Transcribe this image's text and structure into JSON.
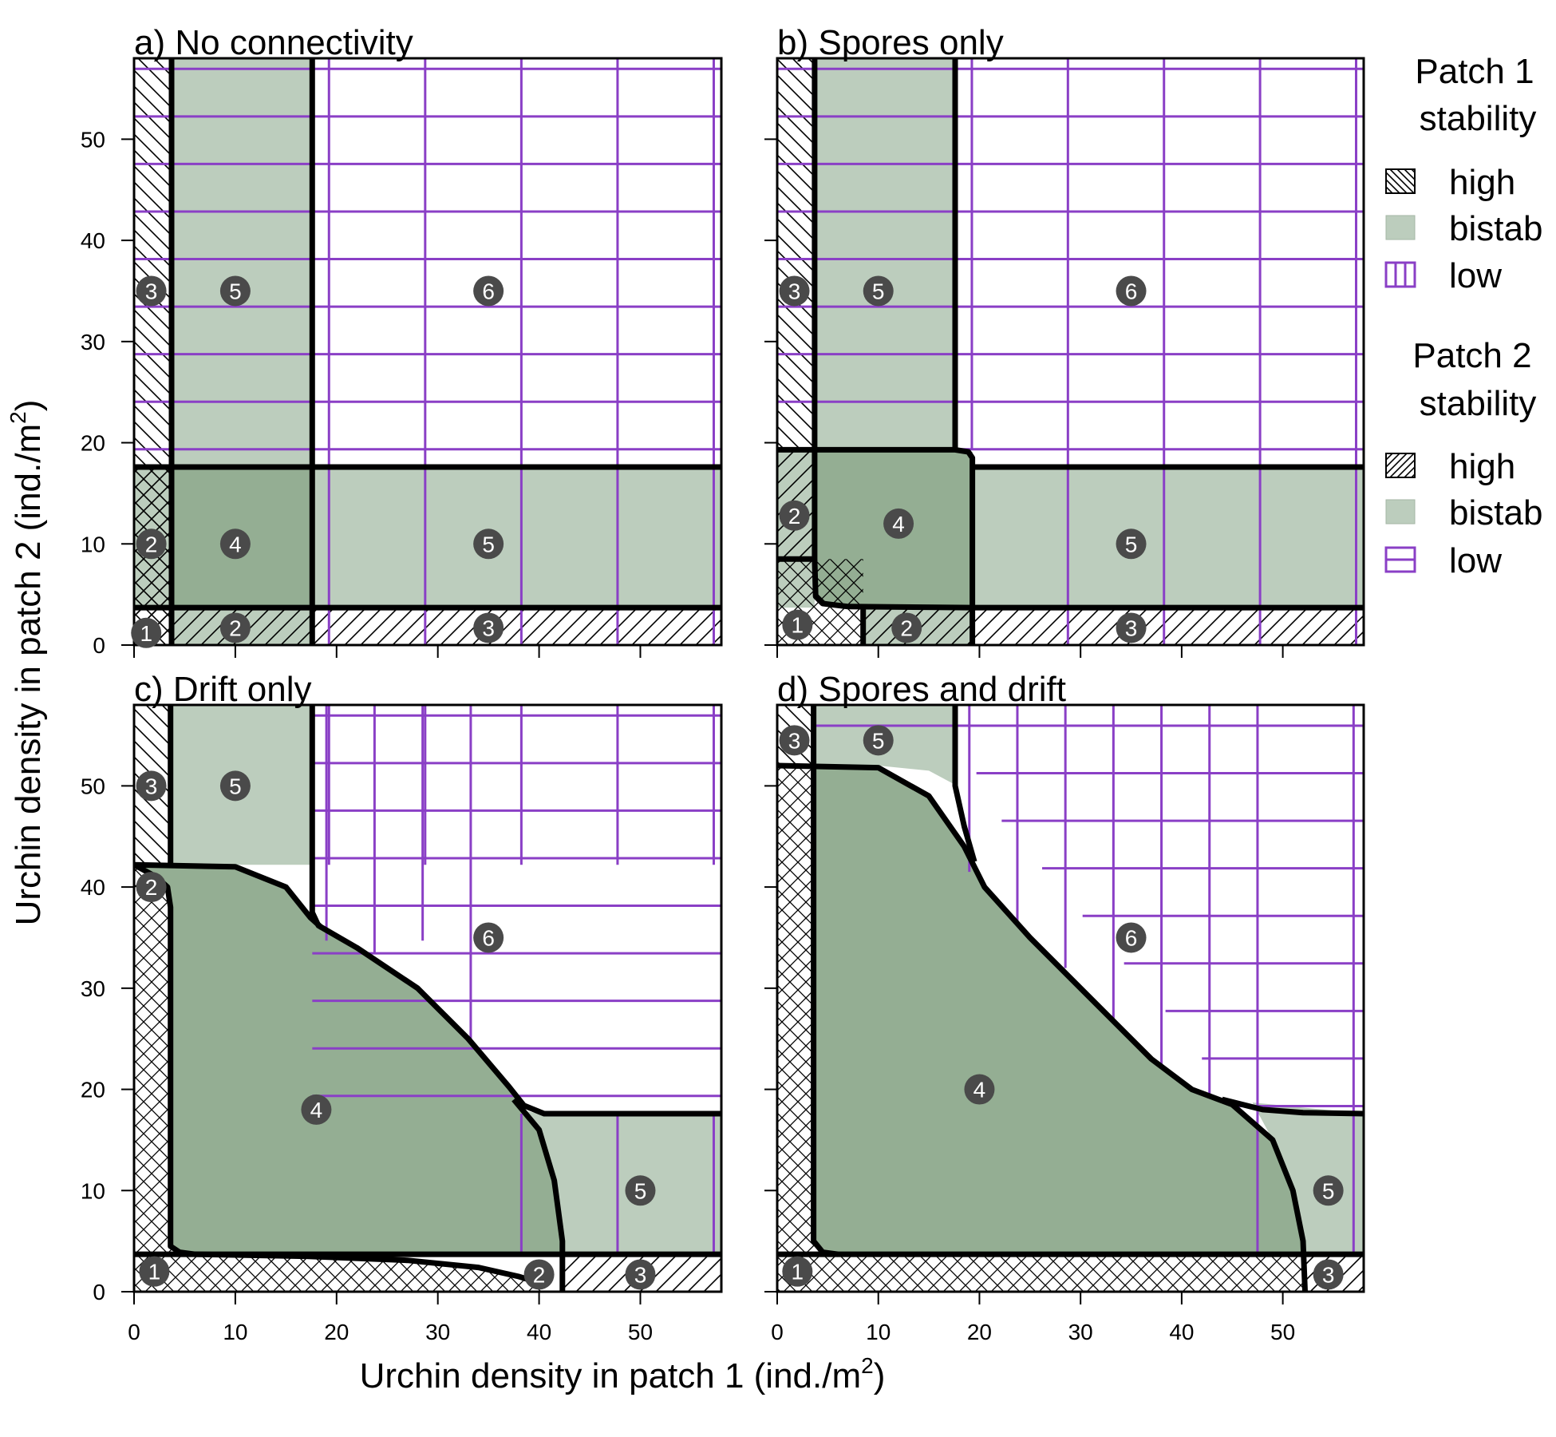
{
  "figure": {
    "xlabel": "Urchin density in patch 1 (ind./m",
    "ylabel": "Urchin density in patch 2 (ind./m",
    "unit_superscript": "2",
    "xticks": [
      0,
      10,
      20,
      30,
      40,
      50
    ],
    "yticks": [
      0,
      10,
      20,
      30,
      40,
      50
    ]
  },
  "legend": {
    "patch1": {
      "title_line1": "Patch 1",
      "title_line2": "stability",
      "items": [
        {
          "label": "high",
          "pattern": "diagonal-backslash"
        },
        {
          "label": "bistab",
          "pattern": "solid-green"
        },
        {
          "label": "low",
          "pattern": "vertical-lines-purple"
        }
      ]
    },
    "patch2": {
      "title_line1": "Patch 2",
      "title_line2": "stability",
      "items": [
        {
          "label": "high",
          "pattern": "diagonal-slash"
        },
        {
          "label": "bistab",
          "pattern": "solid-green"
        },
        {
          "label": "low",
          "pattern": "horizontal-lines-purple"
        }
      ]
    }
  },
  "colors": {
    "bistable_single": "#bccdbd",
    "bistable_both": "#94ae93",
    "low_lines": "#8a3fc6",
    "boundary": "#000000",
    "marker": "#4a4a4a"
  },
  "chart_data": [
    {
      "type": "region-map",
      "title": "a) No connectivity",
      "xlim": [
        0,
        58
      ],
      "ylim": [
        0,
        58
      ],
      "patch1_thresholds": [
        3.7,
        17.6
      ],
      "patch2_thresholds": [
        3.7,
        17.6
      ],
      "region_labels": [
        {
          "id": "1",
          "x": 1.2,
          "y": 1.2
        },
        {
          "id": "2",
          "x": 10,
          "y": 1.7
        },
        {
          "id": "3",
          "x": 35,
          "y": 1.7
        },
        {
          "id": "2",
          "x": 1.7,
          "y": 10
        },
        {
          "id": "4",
          "x": 10,
          "y": 10
        },
        {
          "id": "5",
          "x": 35,
          "y": 10
        },
        {
          "id": "3",
          "x": 1.7,
          "y": 35
        },
        {
          "id": "5",
          "x": 10,
          "y": 35
        },
        {
          "id": "6",
          "x": 35,
          "y": 35
        }
      ]
    },
    {
      "type": "region-map",
      "title": "b) Spores only",
      "xlim": [
        0,
        58
      ],
      "ylim": [
        0,
        58
      ],
      "region_labels": [
        {
          "id": "1",
          "x": 2,
          "y": 2
        },
        {
          "id": "2",
          "x": 12.8,
          "y": 1.7
        },
        {
          "id": "3",
          "x": 35,
          "y": 1.7
        },
        {
          "id": "2",
          "x": 1.7,
          "y": 12.8
        },
        {
          "id": "4",
          "x": 12,
          "y": 12
        },
        {
          "id": "5",
          "x": 35,
          "y": 10
        },
        {
          "id": "3",
          "x": 1.7,
          "y": 35
        },
        {
          "id": "5",
          "x": 10,
          "y": 35
        },
        {
          "id": "6",
          "x": 35,
          "y": 35
        }
      ]
    },
    {
      "type": "region-map",
      "title": "c) Drift only",
      "xlim": [
        0,
        58
      ],
      "ylim": [
        0,
        58
      ],
      "region_labels": [
        {
          "id": "1",
          "x": 2,
          "y": 2
        },
        {
          "id": "2",
          "x": 40,
          "y": 1.7
        },
        {
          "id": "3",
          "x": 50,
          "y": 1.7
        },
        {
          "id": "2",
          "x": 1.7,
          "y": 40
        },
        {
          "id": "4",
          "x": 18,
          "y": 18
        },
        {
          "id": "5",
          "x": 50,
          "y": 10
        },
        {
          "id": "3",
          "x": 1.7,
          "y": 50
        },
        {
          "id": "5",
          "x": 10,
          "y": 50
        },
        {
          "id": "6",
          "x": 35,
          "y": 35
        }
      ]
    },
    {
      "type": "region-map",
      "title": "d) Spores and drift",
      "xlim": [
        0,
        58
      ],
      "ylim": [
        0,
        58
      ],
      "region_labels": [
        {
          "id": "1",
          "x": 2,
          "y": 2
        },
        {
          "id": "3",
          "x": 54.5,
          "y": 1.7
        },
        {
          "id": "4",
          "x": 20,
          "y": 20
        },
        {
          "id": "5",
          "x": 54.5,
          "y": 10
        },
        {
          "id": "3",
          "x": 1.7,
          "y": 54.5
        },
        {
          "id": "5",
          "x": 10,
          "y": 54.5
        },
        {
          "id": "6",
          "x": 35,
          "y": 35
        }
      ]
    }
  ]
}
